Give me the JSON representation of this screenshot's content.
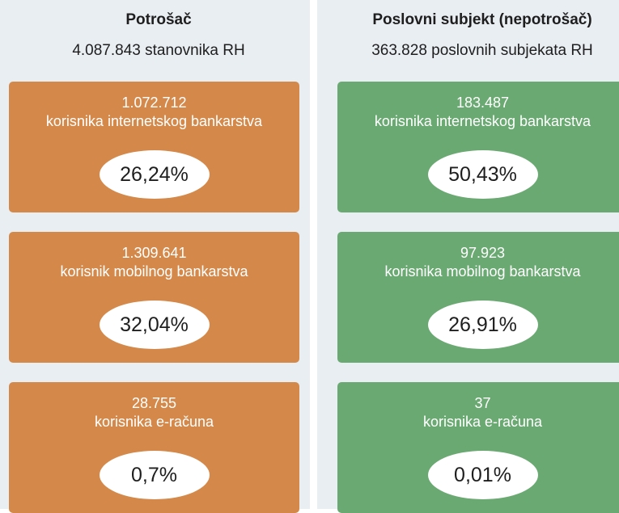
{
  "columns": [
    {
      "title": "Potrošač",
      "subtitle": "4.087.843 stanovnika RH",
      "cards": [
        {
          "count": "1.072.712",
          "label": "korisnika internetskog bankarstva",
          "percent": "26,24%"
        },
        {
          "count": "1.309.641",
          "label": "korisnik mobilnog bankarstva",
          "percent": "32,04%"
        },
        {
          "count": "28.755",
          "label": "korisnika e-računa",
          "percent": "0,7%"
        }
      ]
    },
    {
      "title": "Poslovni subjekt (nepotrošač)",
      "subtitle": "363.828 poslovnih subjekata RH",
      "cards": [
        {
          "count": "183.487",
          "label": "korisnika internetskog bankarstva",
          "percent": "50,43%"
        },
        {
          "count": "97.923",
          "label": "korisnika mobilnog bankarstva",
          "percent": "26,91%"
        },
        {
          "count": "37",
          "label": "korisnika e-računa",
          "percent": "0,01%"
        }
      ]
    }
  ]
}
